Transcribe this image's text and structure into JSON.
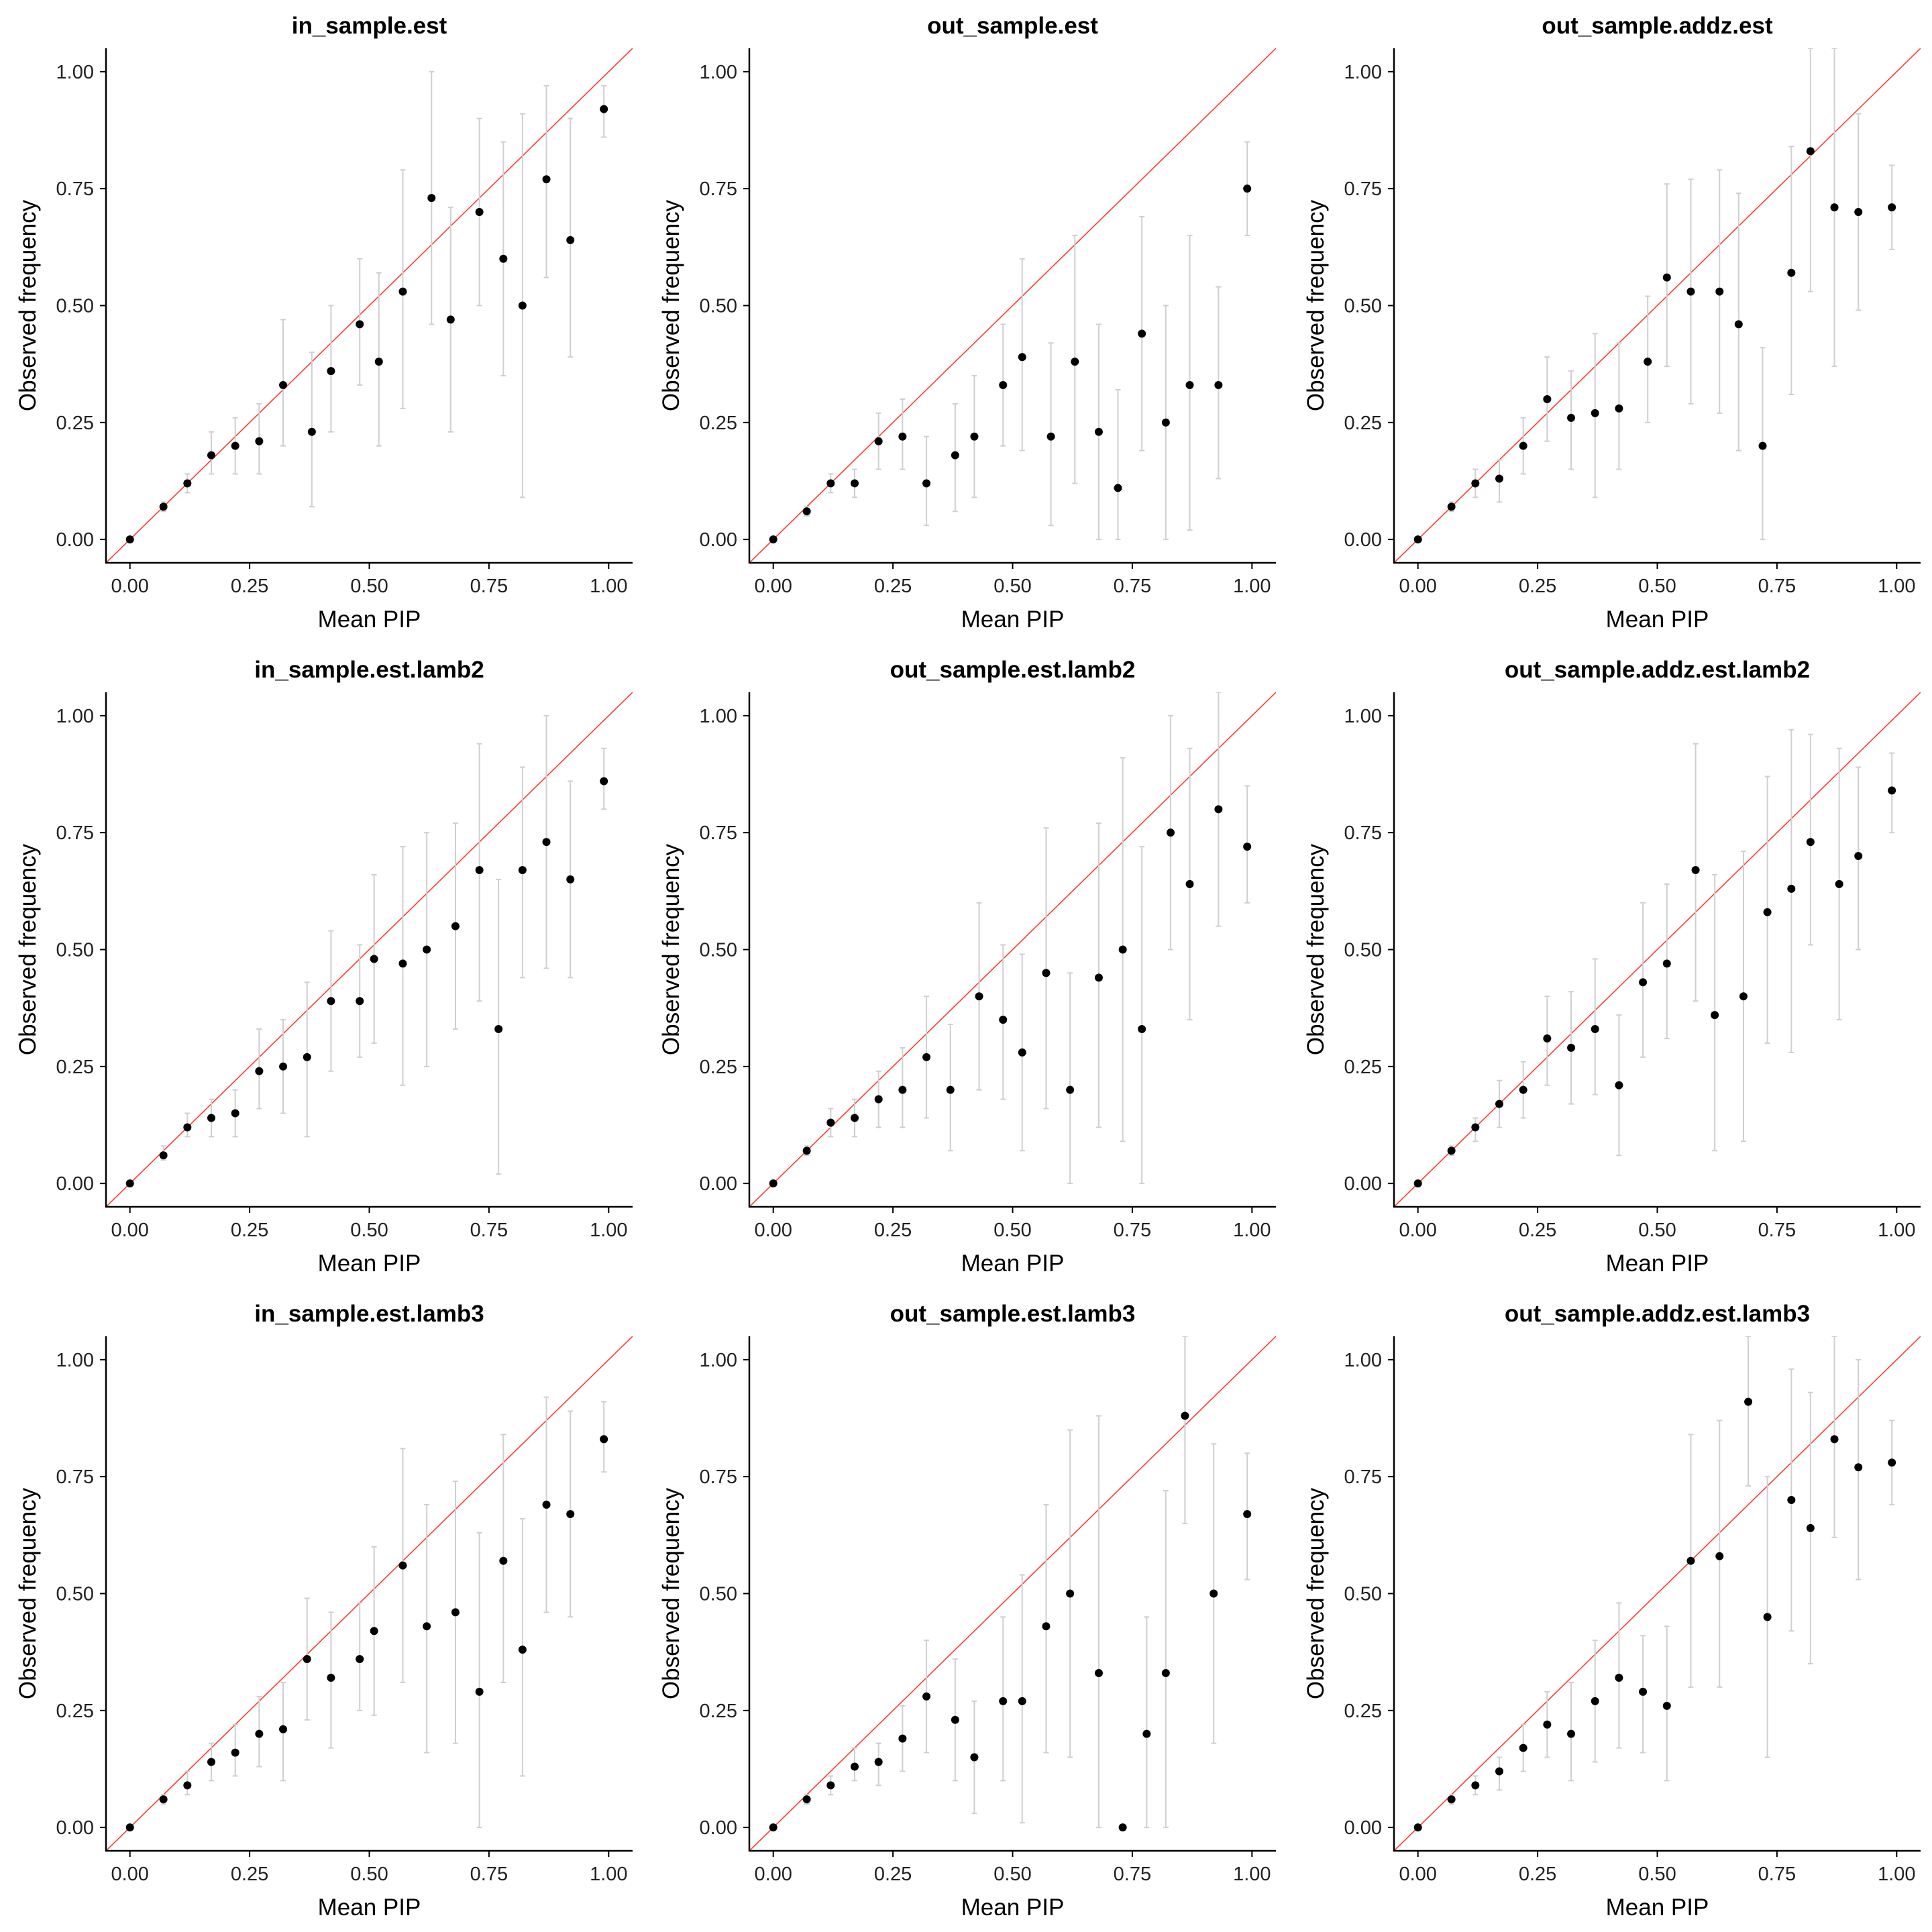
{
  "xlabel": "Mean PIP",
  "ylabel": "Observed frequency",
  "ticks": [
    "0.00",
    "0.25",
    "0.50",
    "0.75",
    "1.00"
  ],
  "colors": {
    "reference_line": "#ff3b30",
    "points": "#000000",
    "error_bars": "#cfcfcf"
  },
  "chart_data": [
    {
      "type": "scatter",
      "title": "in_sample.est",
      "xlabel": "Mean PIP",
      "ylabel": "Observed frequency",
      "xlim": [
        0,
        1
      ],
      "ylim": [
        0,
        1
      ],
      "grid": false,
      "reference_line": "y = x",
      "x": [
        0.0,
        0.07,
        0.12,
        0.17,
        0.22,
        0.27,
        0.32,
        0.38,
        0.42,
        0.48,
        0.52,
        0.57,
        0.63,
        0.67,
        0.73,
        0.78,
        0.82,
        0.87,
        0.92,
        0.99
      ],
      "y": [
        0.0,
        0.07,
        0.12,
        0.18,
        0.2,
        0.21,
        0.33,
        0.23,
        0.36,
        0.46,
        0.38,
        0.53,
        0.73,
        0.47,
        0.7,
        0.6,
        0.5,
        0.77,
        0.64,
        0.92
      ],
      "low": [
        0.0,
        0.06,
        0.1,
        0.14,
        0.14,
        0.14,
        0.2,
        0.07,
        0.23,
        0.33,
        0.2,
        0.28,
        0.46,
        0.23,
        0.5,
        0.35,
        0.09,
        0.56,
        0.39,
        0.86
      ],
      "high": [
        0.0,
        0.08,
        0.14,
        0.23,
        0.26,
        0.29,
        0.47,
        0.4,
        0.5,
        0.6,
        0.57,
        0.79,
        1.0,
        0.71,
        0.9,
        0.85,
        0.91,
        0.97,
        0.9,
        0.97
      ]
    },
    {
      "type": "scatter",
      "title": "out_sample.est",
      "xlabel": "Mean PIP",
      "ylabel": "Observed frequency",
      "xlim": [
        0,
        1
      ],
      "ylim": [
        0,
        1
      ],
      "grid": false,
      "reference_line": "y = x",
      "x": [
        0.0,
        0.07,
        0.12,
        0.17,
        0.22,
        0.27,
        0.32,
        0.38,
        0.42,
        0.48,
        0.52,
        0.58,
        0.63,
        0.68,
        0.72,
        0.77,
        0.82,
        0.87,
        0.93,
        0.99
      ],
      "y": [
        0.0,
        0.06,
        0.12,
        0.12,
        0.21,
        0.22,
        0.12,
        0.18,
        0.22,
        0.33,
        0.39,
        0.22,
        0.38,
        0.23,
        0.11,
        0.44,
        0.25,
        0.33,
        0.33,
        0.75
      ],
      "low": [
        0.0,
        0.05,
        0.1,
        0.09,
        0.15,
        0.15,
        0.03,
        0.06,
        0.09,
        0.2,
        0.19,
        0.03,
        0.12,
        0.0,
        0.0,
        0.19,
        0.0,
        0.02,
        0.13,
        0.65
      ],
      "high": [
        0.0,
        0.07,
        0.14,
        0.15,
        0.27,
        0.3,
        0.22,
        0.29,
        0.35,
        0.46,
        0.6,
        0.42,
        0.65,
        0.46,
        0.32,
        0.69,
        0.5,
        0.65,
        0.54,
        0.85
      ]
    },
    {
      "type": "scatter",
      "title": "out_sample.addz.est",
      "xlabel": "Mean PIP",
      "ylabel": "Observed frequency",
      "xlim": [
        0,
        1
      ],
      "ylim": [
        0,
        1
      ],
      "grid": false,
      "reference_line": "y = x",
      "x": [
        0.0,
        0.07,
        0.12,
        0.17,
        0.22,
        0.27,
        0.32,
        0.37,
        0.42,
        0.48,
        0.52,
        0.57,
        0.63,
        0.67,
        0.72,
        0.78,
        0.82,
        0.87,
        0.92,
        0.99
      ],
      "y": [
        0.0,
        0.07,
        0.12,
        0.13,
        0.2,
        0.3,
        0.26,
        0.27,
        0.28,
        0.38,
        0.56,
        0.53,
        0.53,
        0.46,
        0.2,
        0.57,
        0.83,
        0.71,
        0.7,
        0.71
      ],
      "low": [
        0.0,
        0.06,
        0.09,
        0.08,
        0.14,
        0.21,
        0.15,
        0.09,
        0.15,
        0.25,
        0.37,
        0.29,
        0.27,
        0.19,
        0.0,
        0.31,
        0.53,
        0.37,
        0.49,
        0.62
      ],
      "high": [
        0.0,
        0.08,
        0.15,
        0.17,
        0.26,
        0.39,
        0.36,
        0.44,
        0.42,
        0.52,
        0.76,
        0.77,
        0.79,
        0.74,
        0.41,
        0.84,
        1.05,
        1.05,
        0.91,
        0.8
      ]
    },
    {
      "type": "scatter",
      "title": "in_sample.est.lamb2",
      "xlabel": "Mean PIP",
      "ylabel": "Observed frequency",
      "xlim": [
        0,
        1
      ],
      "ylim": [
        0,
        1
      ],
      "grid": false,
      "reference_line": "y = x",
      "x": [
        0.0,
        0.07,
        0.12,
        0.17,
        0.22,
        0.27,
        0.32,
        0.37,
        0.42,
        0.48,
        0.51,
        0.57,
        0.62,
        0.68,
        0.73,
        0.77,
        0.82,
        0.87,
        0.92,
        0.99
      ],
      "y": [
        0.0,
        0.06,
        0.12,
        0.14,
        0.15,
        0.24,
        0.25,
        0.27,
        0.39,
        0.39,
        0.48,
        0.47,
        0.5,
        0.55,
        0.67,
        0.33,
        0.67,
        0.73,
        0.65,
        0.86
      ],
      "low": [
        0.0,
        0.05,
        0.1,
        0.1,
        0.1,
        0.16,
        0.15,
        0.1,
        0.24,
        0.27,
        0.3,
        0.21,
        0.25,
        0.33,
        0.39,
        0.02,
        0.44,
        0.46,
        0.44,
        0.8
      ],
      "high": [
        0.0,
        0.08,
        0.15,
        0.18,
        0.2,
        0.33,
        0.35,
        0.43,
        0.54,
        0.51,
        0.66,
        0.72,
        0.75,
        0.77,
        0.94,
        0.65,
        0.89,
        1.0,
        0.86,
        0.93
      ]
    },
    {
      "type": "scatter",
      "title": "out_sample.est.lamb2",
      "xlabel": "Mean PIP",
      "ylabel": "Observed frequency",
      "xlim": [
        0,
        1
      ],
      "ylim": [
        0,
        1
      ],
      "grid": false,
      "reference_line": "y = x",
      "x": [
        0.0,
        0.07,
        0.12,
        0.17,
        0.22,
        0.27,
        0.32,
        0.37,
        0.43,
        0.48,
        0.52,
        0.57,
        0.62,
        0.68,
        0.73,
        0.77,
        0.83,
        0.87,
        0.93,
        0.99
      ],
      "y": [
        0.0,
        0.07,
        0.13,
        0.14,
        0.18,
        0.2,
        0.27,
        0.2,
        0.4,
        0.35,
        0.28,
        0.45,
        0.2,
        0.44,
        0.5,
        0.33,
        0.75,
        0.64,
        0.8,
        0.72
      ],
      "low": [
        0.0,
        0.06,
        0.1,
        0.1,
        0.12,
        0.12,
        0.14,
        0.07,
        0.2,
        0.18,
        0.07,
        0.16,
        0.0,
        0.12,
        0.09,
        0.0,
        0.5,
        0.35,
        0.55,
        0.6
      ],
      "high": [
        0.0,
        0.08,
        0.16,
        0.18,
        0.24,
        0.29,
        0.4,
        0.34,
        0.6,
        0.51,
        0.49,
        0.76,
        0.45,
        0.77,
        0.91,
        0.72,
        1.0,
        0.93,
        1.05,
        0.85
      ]
    },
    {
      "type": "scatter",
      "title": "out_sample.addz.est.lamb2",
      "xlabel": "Mean PIP",
      "ylabel": "Observed frequency",
      "xlim": [
        0,
        1
      ],
      "ylim": [
        0,
        1
      ],
      "grid": false,
      "reference_line": "y = x",
      "x": [
        0.0,
        0.07,
        0.12,
        0.17,
        0.22,
        0.27,
        0.32,
        0.37,
        0.42,
        0.47,
        0.52,
        0.58,
        0.62,
        0.68,
        0.73,
        0.78,
        0.82,
        0.88,
        0.92,
        0.99
      ],
      "y": [
        0.0,
        0.07,
        0.12,
        0.17,
        0.2,
        0.31,
        0.29,
        0.33,
        0.21,
        0.43,
        0.47,
        0.67,
        0.36,
        0.4,
        0.58,
        0.63,
        0.73,
        0.64,
        0.7,
        0.84
      ],
      "low": [
        0.0,
        0.06,
        0.09,
        0.12,
        0.14,
        0.21,
        0.17,
        0.19,
        0.06,
        0.27,
        0.31,
        0.39,
        0.07,
        0.09,
        0.3,
        0.28,
        0.51,
        0.35,
        0.5,
        0.75
      ],
      "high": [
        0.0,
        0.08,
        0.14,
        0.22,
        0.26,
        0.4,
        0.41,
        0.48,
        0.36,
        0.6,
        0.64,
        0.94,
        0.66,
        0.71,
        0.87,
        0.97,
        0.96,
        0.93,
        0.89,
        0.92
      ]
    },
    {
      "type": "scatter",
      "title": "in_sample.est.lamb3",
      "xlabel": "Mean PIP",
      "ylabel": "Observed frequency",
      "xlim": [
        0,
        1
      ],
      "ylim": [
        0,
        1
      ],
      "grid": false,
      "reference_line": "y = x",
      "x": [
        0.0,
        0.07,
        0.12,
        0.17,
        0.22,
        0.27,
        0.32,
        0.37,
        0.42,
        0.48,
        0.51,
        0.57,
        0.62,
        0.68,
        0.73,
        0.78,
        0.82,
        0.87,
        0.92,
        0.99
      ],
      "y": [
        0.0,
        0.06,
        0.09,
        0.14,
        0.16,
        0.2,
        0.21,
        0.36,
        0.32,
        0.36,
        0.42,
        0.56,
        0.43,
        0.46,
        0.29,
        0.57,
        0.38,
        0.69,
        0.67,
        0.83
      ],
      "low": [
        0.0,
        0.05,
        0.07,
        0.1,
        0.11,
        0.13,
        0.1,
        0.23,
        0.17,
        0.25,
        0.24,
        0.31,
        0.16,
        0.18,
        0.0,
        0.31,
        0.11,
        0.46,
        0.45,
        0.76
      ],
      "high": [
        0.0,
        0.07,
        0.12,
        0.18,
        0.22,
        0.28,
        0.31,
        0.49,
        0.46,
        0.48,
        0.6,
        0.81,
        0.69,
        0.74,
        0.63,
        0.84,
        0.66,
        0.92,
        0.89,
        0.91
      ]
    },
    {
      "type": "scatter",
      "title": "out_sample.est.lamb3",
      "xlabel": "Mean PIP",
      "ylabel": "Observed frequency",
      "xlim": [
        0,
        1
      ],
      "ylim": [
        0,
        1
      ],
      "grid": false,
      "reference_line": "y = x",
      "x": [
        0.0,
        0.07,
        0.12,
        0.17,
        0.22,
        0.27,
        0.32,
        0.38,
        0.42,
        0.48,
        0.52,
        0.57,
        0.62,
        0.68,
        0.73,
        0.78,
        0.82,
        0.86,
        0.92,
        0.99
      ],
      "y": [
        0.0,
        0.06,
        0.09,
        0.13,
        0.14,
        0.19,
        0.28,
        0.23,
        0.15,
        0.27,
        0.27,
        0.43,
        0.5,
        0.33,
        0.0,
        0.2,
        0.33,
        0.88,
        0.5,
        0.67
      ],
      "low": [
        0.0,
        0.05,
        0.07,
        0.1,
        0.09,
        0.12,
        0.16,
        0.1,
        0.03,
        0.1,
        0.01,
        0.16,
        0.15,
        0.0,
        0.0,
        0.0,
        0.0,
        0.65,
        0.18,
        0.53
      ],
      "high": [
        0.0,
        0.07,
        0.11,
        0.17,
        0.18,
        0.26,
        0.4,
        0.36,
        0.27,
        0.45,
        0.54,
        0.69,
        0.85,
        0.88,
        0.0,
        0.45,
        0.72,
        1.05,
        0.82,
        0.8
      ]
    },
    {
      "type": "scatter",
      "title": "out_sample.addz.est.lamb3",
      "xlabel": "Mean PIP",
      "ylabel": "Observed frequency",
      "xlim": [
        0,
        1
      ],
      "ylim": [
        0,
        1
      ],
      "grid": false,
      "reference_line": "y = x",
      "x": [
        0.0,
        0.07,
        0.12,
        0.17,
        0.22,
        0.27,
        0.32,
        0.37,
        0.42,
        0.47,
        0.52,
        0.57,
        0.63,
        0.69,
        0.73,
        0.78,
        0.82,
        0.87,
        0.92,
        0.99
      ],
      "y": [
        0.0,
        0.06,
        0.09,
        0.12,
        0.17,
        0.22,
        0.2,
        0.27,
        0.32,
        0.29,
        0.26,
        0.57,
        0.58,
        0.91,
        0.45,
        0.7,
        0.64,
        0.83,
        0.77,
        0.78
      ],
      "low": [
        0.0,
        0.05,
        0.07,
        0.08,
        0.12,
        0.15,
        0.1,
        0.14,
        0.17,
        0.16,
        0.1,
        0.3,
        0.3,
        0.73,
        0.15,
        0.42,
        0.35,
        0.62,
        0.53,
        0.69
      ],
      "high": [
        0.0,
        0.07,
        0.11,
        0.15,
        0.22,
        0.29,
        0.31,
        0.4,
        0.48,
        0.41,
        0.43,
        0.84,
        0.87,
        1.05,
        0.75,
        0.98,
        0.93,
        1.05,
        1.0,
        0.87
      ]
    }
  ]
}
